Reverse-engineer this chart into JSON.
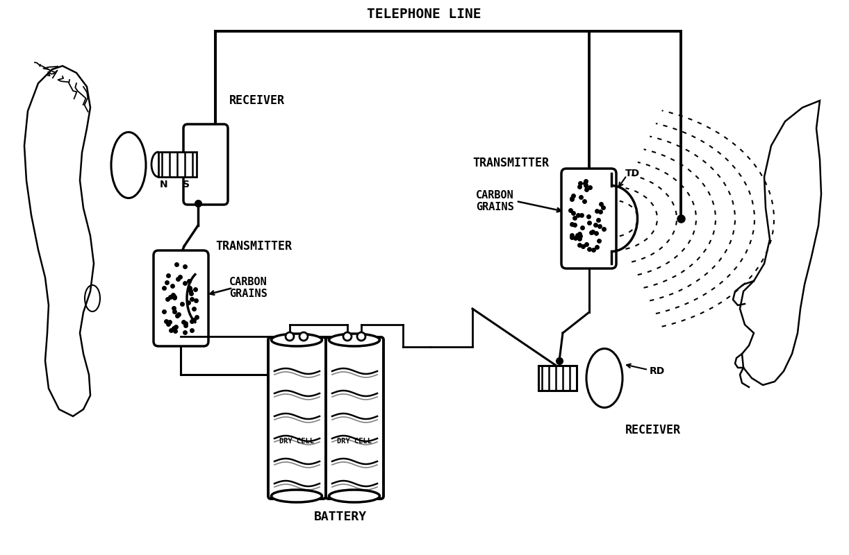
{
  "bg_color": "#ffffff",
  "line_color": "#000000",
  "labels": {
    "telephone_line": "TELEPHONE LINE",
    "receiver_left": "RECEIVER",
    "carbon_grains_left": "CARBON\nGRAINS",
    "transmitter_left": "TRANSMITTER",
    "transmitter_right": "TRANSMITTER",
    "carbon_grains_right": "CARBON\nGRAINS",
    "receiver_right": "RECEIVER",
    "battery": "BATTERY",
    "dry_cell": "DRY CELL",
    "td": "TD",
    "rd": "RD",
    "ns_n": "N",
    "ns_s": "S"
  },
  "figsize": [
    12.22,
    8.0
  ],
  "dpi": 100
}
